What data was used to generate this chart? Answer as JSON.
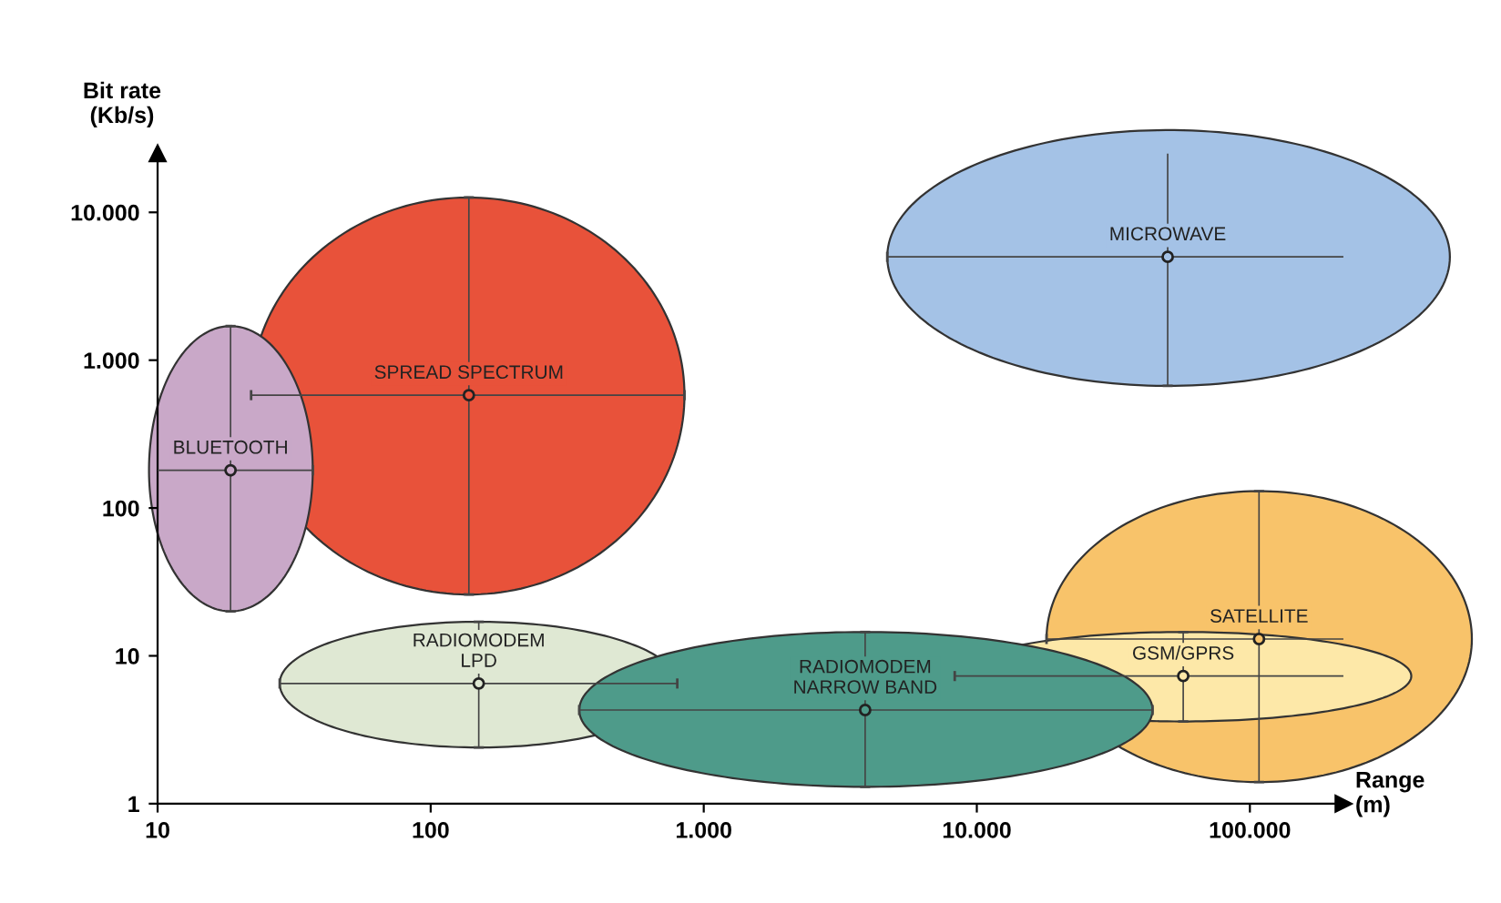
{
  "chart_data": {
    "type": "scatter",
    "xlabel": "Range\n(m)",
    "ylabel": "Bit rate\n(Kb/s)",
    "log": "xy",
    "grid": false,
    "legend": false,
    "xlim": [
      10,
      220000
    ],
    "ylim": [
      1,
      25000
    ],
    "xticks": [
      10,
      100,
      {
        "value": 1000,
        "label": "1.000"
      },
      {
        "value": 10000,
        "label": "10.000"
      },
      {
        "value": 100000,
        "label": "100.000"
      }
    ],
    "yticks": [
      1,
      10,
      100,
      {
        "value": 1000,
        "label": "1.000"
      },
      {
        "value": 10000,
        "label": "10.000"
      }
    ],
    "series": [
      {
        "name": "MICROWAVE",
        "color": "#a4c2e6",
        "x": [
          50000
        ],
        "values": [
          5000
        ],
        "xerrors": [
          [
            4700,
            540000
          ]
        ],
        "errors": [
          [
            670,
            36000
          ]
        ]
      },
      {
        "name": "SPREAD SPECTRUM",
        "color": "#e8523a",
        "x": [
          138
        ],
        "values": [
          580
        ],
        "xerrors": [
          [
            22,
            850
          ]
        ],
        "errors": [
          [
            26,
            12600
          ]
        ]
      },
      {
        "name": "BLUETOOTH",
        "color": "#c9a8c8",
        "x": [
          18.5
        ],
        "values": [
          180
        ],
        "xerrors": [
          [
            9.3,
            37
          ]
        ],
        "errors": [
          [
            20,
            1700
          ]
        ]
      },
      {
        "name": "RADIOMODEM\nLPD",
        "color": "#dfe8d3",
        "x": [
          150
        ],
        "values": [
          6.5
        ],
        "xerrors": [
          [
            28,
            800
          ]
        ],
        "errors": [
          [
            2.4,
            17
          ]
        ]
      },
      {
        "name": "SATELLITE",
        "color": "#f8c36a",
        "x": [
          108000
        ],
        "values": [
          13
        ],
        "xerrors": [
          [
            18000,
            650000
          ]
        ],
        "errors": [
          [
            1.4,
            130
          ]
        ]
      },
      {
        "name": "GSM/GPRS",
        "color": "#fde8a8",
        "x": [
          57000
        ],
        "values": [
          7.3
        ],
        "xerrors": [
          [
            8300,
            390000
          ]
        ],
        "errors": [
          [
            3.6,
            14.5
          ]
        ]
      },
      {
        "name": "RADIOMODEM\nNARROW BAND",
        "color": "#4e9b8a",
        "x": [
          3900
        ],
        "values": [
          4.3
        ],
        "xerrors": [
          [
            350,
            44000
          ]
        ],
        "errors": [
          [
            1.3,
            14.5
          ]
        ]
      }
    ]
  }
}
